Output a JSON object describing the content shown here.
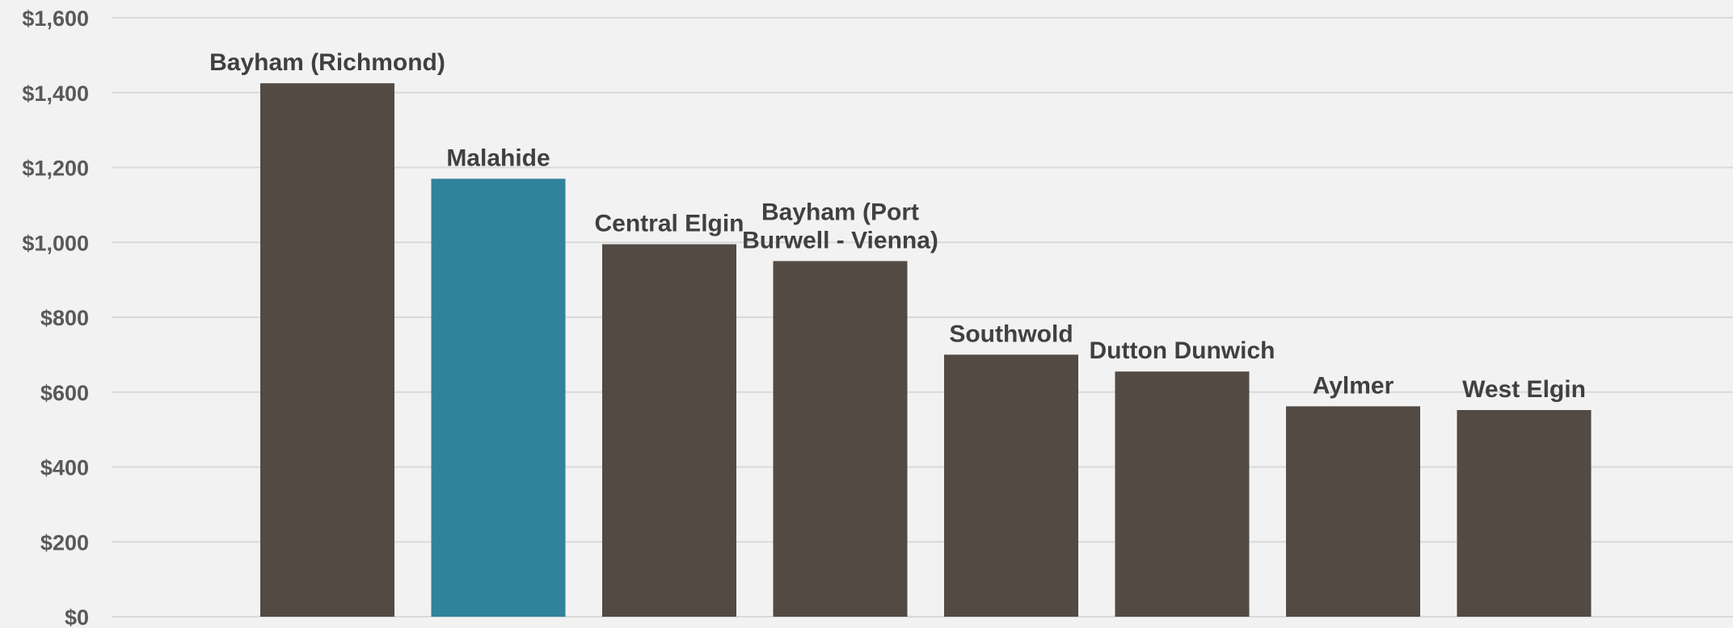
{
  "colors": {
    "background": "#f2f2f2",
    "bar_default": "#524a43",
    "bar_highlight": "#31839c",
    "grid": "#d9d9d9",
    "tick_text": "#595959",
    "label_text": "#404040"
  },
  "chart_data": {
    "type": "bar",
    "title": "",
    "xlabel": "",
    "ylabel": "",
    "ylim": [
      0,
      1600
    ],
    "y_ticks": [
      0,
      200,
      400,
      600,
      800,
      1000,
      1200,
      1400,
      1600
    ],
    "y_tick_labels": [
      "$0",
      "$200",
      "$400",
      "$600",
      "$800",
      "$1,000",
      "$1,200",
      "$1,400",
      "$1,600"
    ],
    "grid": true,
    "legend": "none",
    "data_labels": "category names above bars",
    "categories": [
      "Bayham (Richmond)",
      "Malahide",
      "Central Elgin",
      "Bayham (Port Burwell - Vienna)",
      "Southwold",
      "Dutton Dunwich",
      "Aylmer",
      "West Elgin"
    ],
    "label_lines": [
      [
        "Bayham (Richmond)"
      ],
      [
        "Malahide"
      ],
      [
        "Central Elgin"
      ],
      [
        "Bayham (Port",
        "Burwell - Vienna)"
      ],
      [
        "Southwold"
      ],
      [
        "Dutton Dunwich"
      ],
      [
        "Aylmer"
      ],
      [
        "West Elgin"
      ]
    ],
    "values": [
      1425,
      1170,
      995,
      950,
      700,
      655,
      562,
      552
    ],
    "highlight": "Malahide"
  }
}
